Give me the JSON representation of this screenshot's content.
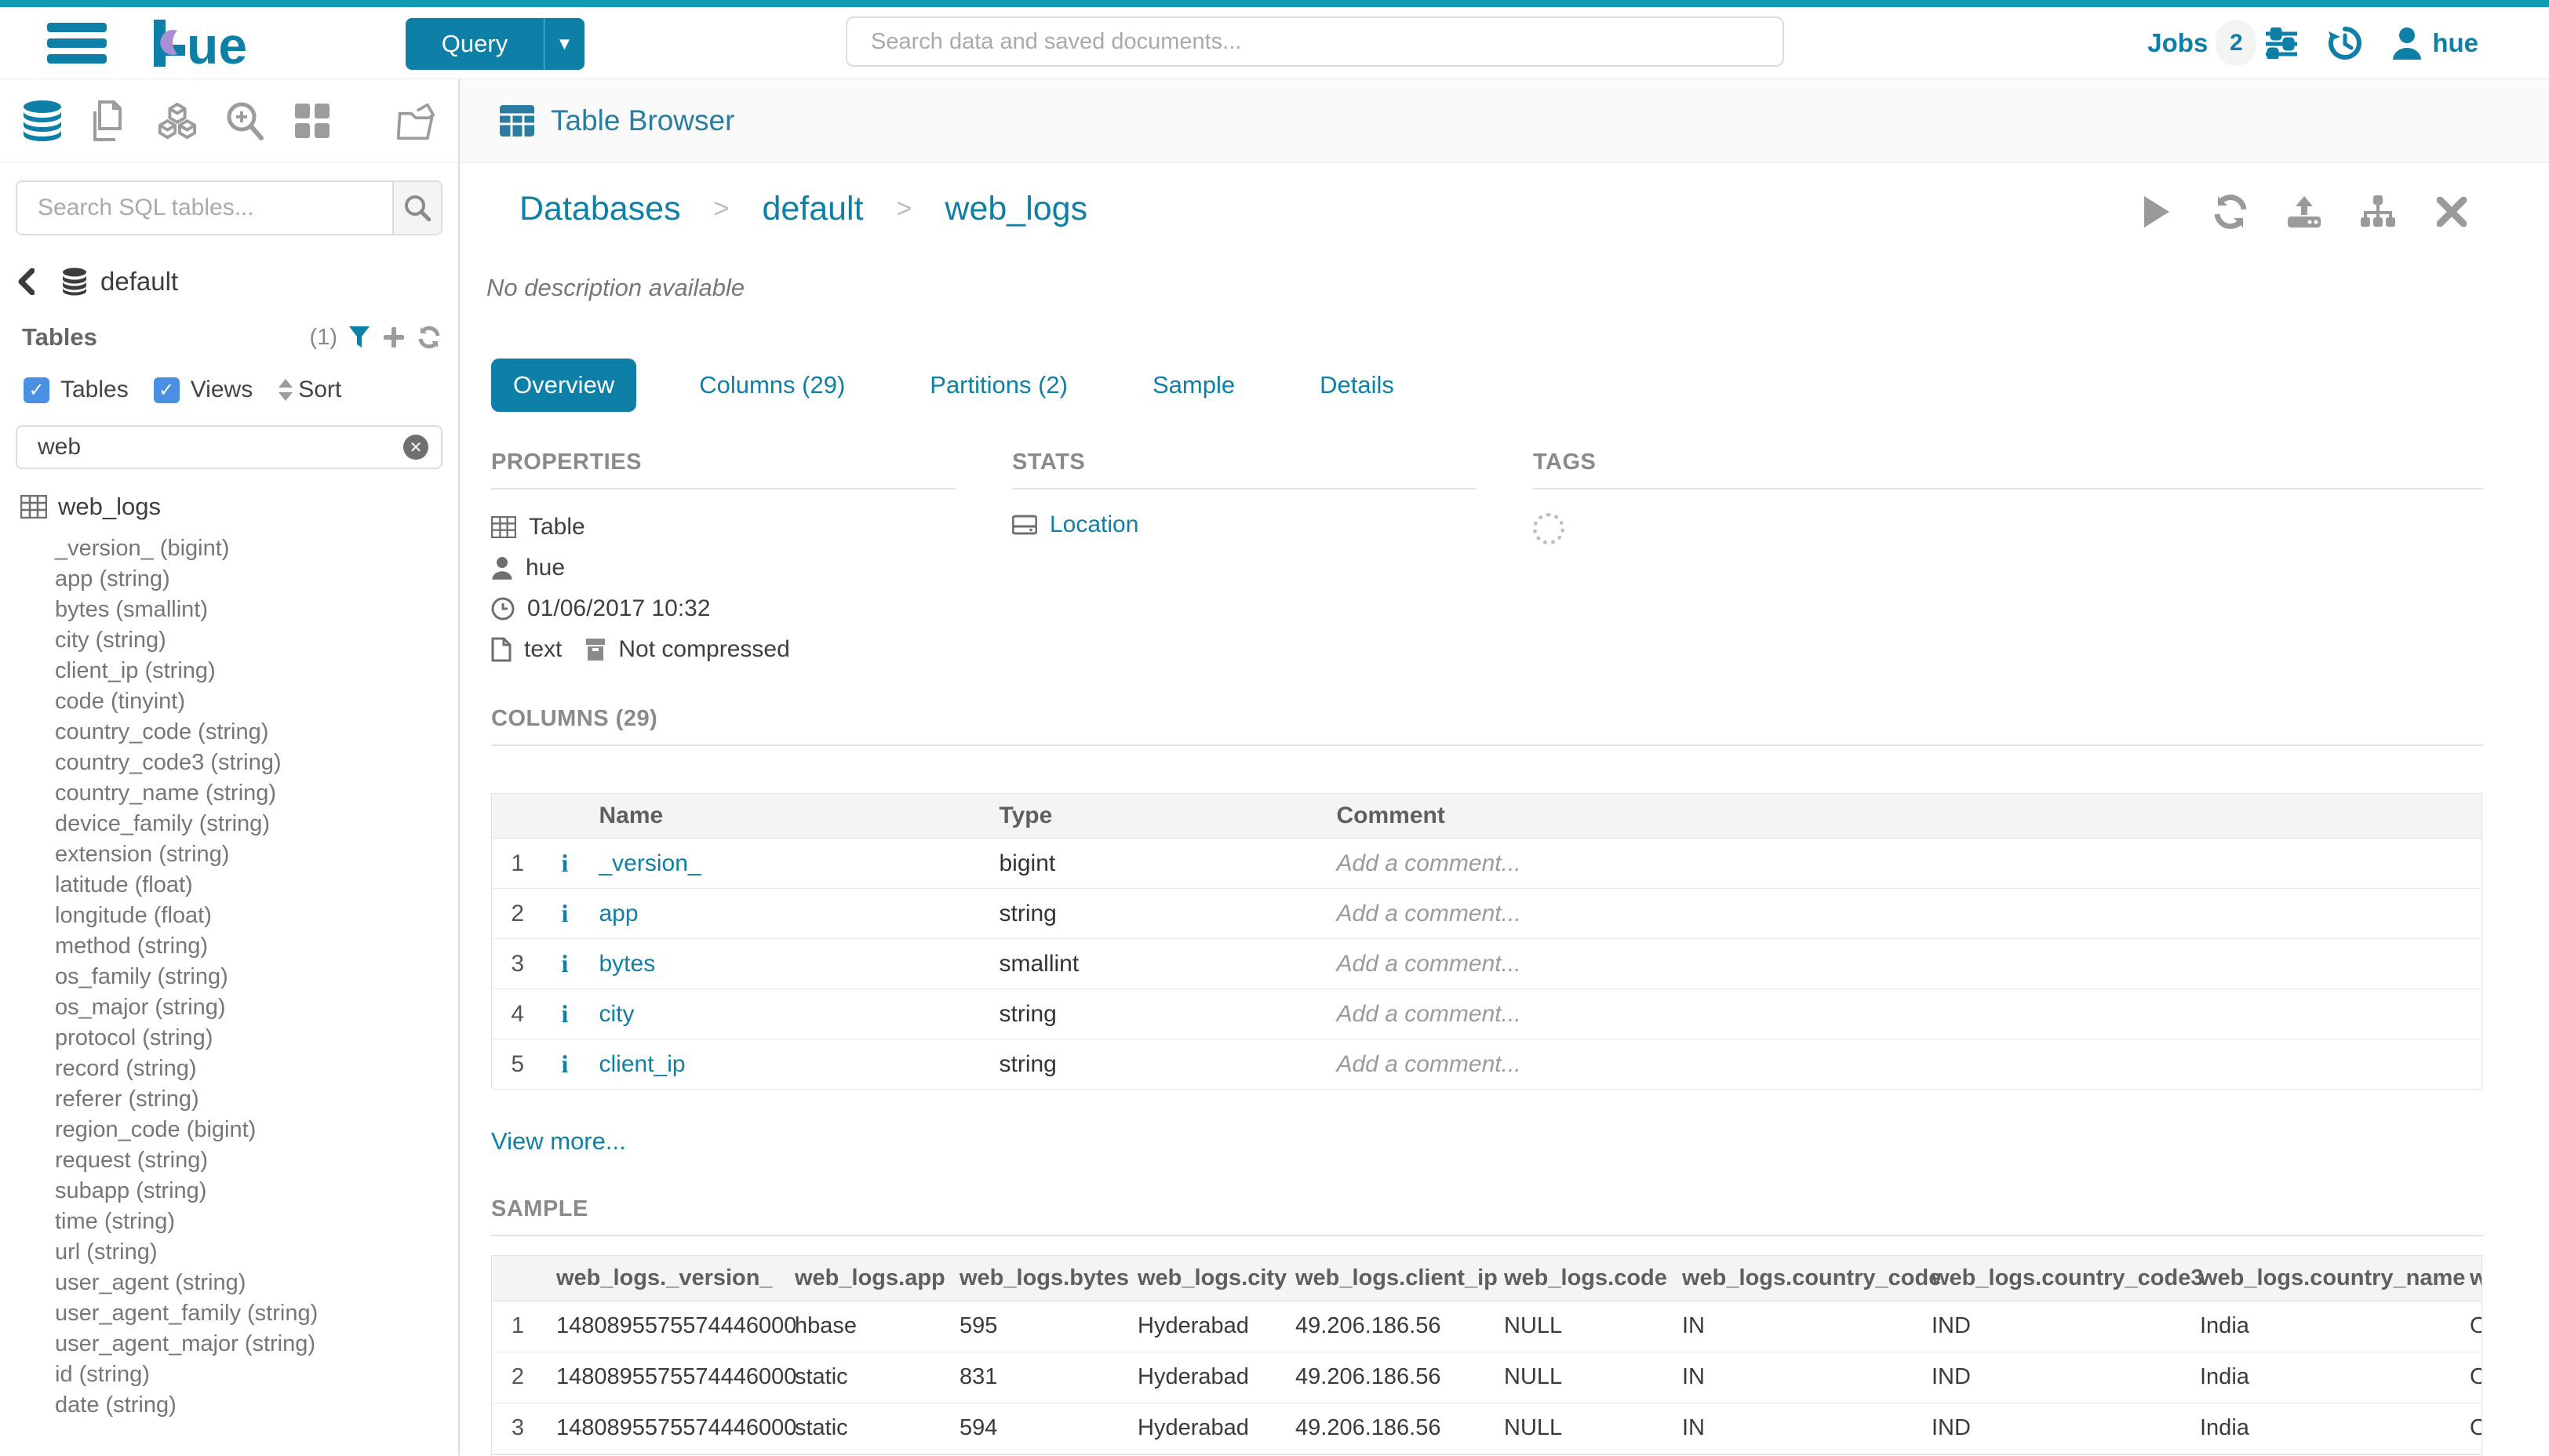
{
  "colors": {
    "accent": "#0e7fa6",
    "top_strip": "#129cb0",
    "checkbox_blue": "#4a90e2"
  },
  "topbar": {
    "query_label": "Query",
    "search_placeholder": "Search data and saved documents...",
    "jobs_label": "Jobs",
    "jobs_count": "2",
    "user_name": "hue"
  },
  "sidebar": {
    "search_placeholder": "Search SQL tables...",
    "database_name": "default",
    "tables_heading": "Tables",
    "tables_count": "(1)",
    "filter_tables_label": "Tables",
    "filter_views_label": "Views",
    "sort_label": "Sort",
    "filter_value": "web",
    "table_name": "web_logs",
    "columns": [
      "_version_ (bigint)",
      "app (string)",
      "bytes (smallint)",
      "city (string)",
      "client_ip (string)",
      "code (tinyint)",
      "country_code (string)",
      "country_code3 (string)",
      "country_name (string)",
      "device_family (string)",
      "extension (string)",
      "latitude (float)",
      "longitude (float)",
      "method (string)",
      "os_family (string)",
      "os_major (string)",
      "protocol (string)",
      "record (string)",
      "referer (string)",
      "region_code (bigint)",
      "request (string)",
      "subapp (string)",
      "time (string)",
      "url (string)",
      "user_agent (string)",
      "user_agent_family (string)",
      "user_agent_major (string)",
      "id (string)",
      "date (string)"
    ]
  },
  "header": {
    "title": "Table Browser"
  },
  "breadcrumb": [
    "Databases",
    "default",
    "web_logs"
  ],
  "main": {
    "description": "No description available",
    "tabs": [
      {
        "label": "Overview",
        "active": true
      },
      {
        "label": "Columns (29)",
        "active": false
      },
      {
        "label": "Partitions (2)",
        "active": false
      },
      {
        "label": "Sample",
        "active": false
      },
      {
        "label": "Details",
        "active": false
      }
    ],
    "properties": {
      "heading": "PROPERTIES",
      "entity_type": "Table",
      "owner": "hue",
      "created": "01/06/2017 10:32",
      "format": "text",
      "compression": "Not compressed"
    },
    "stats": {
      "heading": "STATS",
      "location_label": "Location"
    },
    "tags": {
      "heading": "TAGS"
    },
    "columns_section": {
      "heading": "COLUMNS (29)",
      "headers": [
        "Name",
        "Type",
        "Comment"
      ],
      "rows": [
        {
          "num": "1",
          "name": "_version_",
          "type": "bigint",
          "comment": "Add a comment..."
        },
        {
          "num": "2",
          "name": "app",
          "type": "string",
          "comment": "Add a comment..."
        },
        {
          "num": "3",
          "name": "bytes",
          "type": "smallint",
          "comment": "Add a comment..."
        },
        {
          "num": "4",
          "name": "city",
          "type": "string",
          "comment": "Add a comment..."
        },
        {
          "num": "5",
          "name": "client_ip",
          "type": "string",
          "comment": "Add a comment..."
        }
      ],
      "view_more": "View more..."
    },
    "sample_section": {
      "heading": "SAMPLE",
      "headers": [
        "web_logs._version_",
        "web_logs.app",
        "web_logs.bytes",
        "web_logs.city",
        "web_logs.client_ip",
        "web_logs.code",
        "web_logs.country_code",
        "web_logs.country_code3",
        "web_logs.country_name",
        "w"
      ],
      "rows": [
        {
          "num": "1",
          "cells": [
            "1480895575574446000",
            "hbase",
            "595",
            "Hyderabad",
            "49.206.186.56",
            "NULL",
            "IN",
            "IND",
            "India",
            "O"
          ]
        },
        {
          "num": "2",
          "cells": [
            "1480895575574446000",
            "static",
            "831",
            "Hyderabad",
            "49.206.186.56",
            "NULL",
            "IN",
            "IND",
            "India",
            "O"
          ]
        },
        {
          "num": "3",
          "cells": [
            "1480895575574446000",
            "static",
            "594",
            "Hyderabad",
            "49.206.186.56",
            "NULL",
            "IN",
            "IND",
            "India",
            "O"
          ]
        }
      ]
    }
  }
}
